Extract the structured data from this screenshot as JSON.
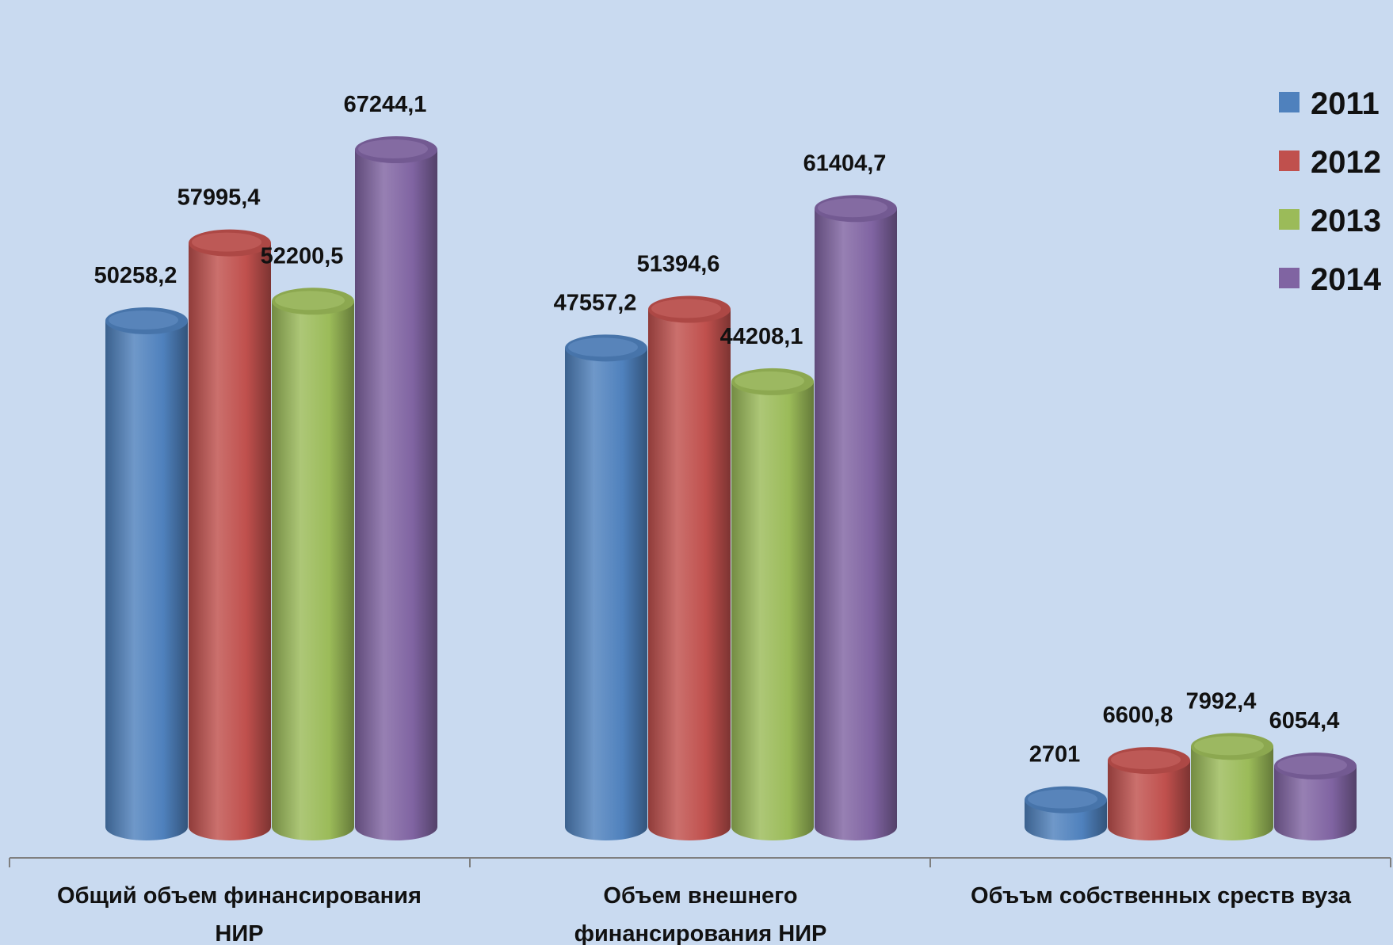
{
  "chart_data": {
    "type": "bar",
    "categories": [
      "Общий объем финансирования НИР",
      "Объем внешнего финансирования НИР",
      "Объъм собственных среств вуза"
    ],
    "category_lines": [
      [
        "Общий объем финансирования",
        "НИР"
      ],
      [
        "Объем внешнего",
        "финансирования НИР"
      ],
      [
        "Объъм собственных среств вуза"
      ]
    ],
    "series": [
      {
        "name": "2011",
        "color": "#4f81bd",
        "values": [
          50258.2,
          47557.2,
          2701
        ],
        "labels": [
          "50258,2",
          "47557,2",
          "2701"
        ]
      },
      {
        "name": "2012",
        "color": "#c0504d",
        "values": [
          57995.4,
          51394.6,
          6600.8
        ],
        "labels": [
          "57995,4",
          "51394,6",
          "6600,8"
        ]
      },
      {
        "name": "2013",
        "color": "#9bbb59",
        "values": [
          52200.5,
          44208.1,
          7992.4
        ],
        "labels": [
          "52200,5",
          "44208,1",
          "7992,4"
        ]
      },
      {
        "name": "2014",
        "color": "#8064a2",
        "values": [
          67244.1,
          61404.7,
          6054.4
        ],
        "labels": [
          "67244,1",
          "61404,7",
          "6054,4"
        ]
      }
    ],
    "ylim": [
      0,
      70000
    ],
    "grid": false,
    "legend_position": "top-right",
    "style": "3d-cylinder"
  }
}
